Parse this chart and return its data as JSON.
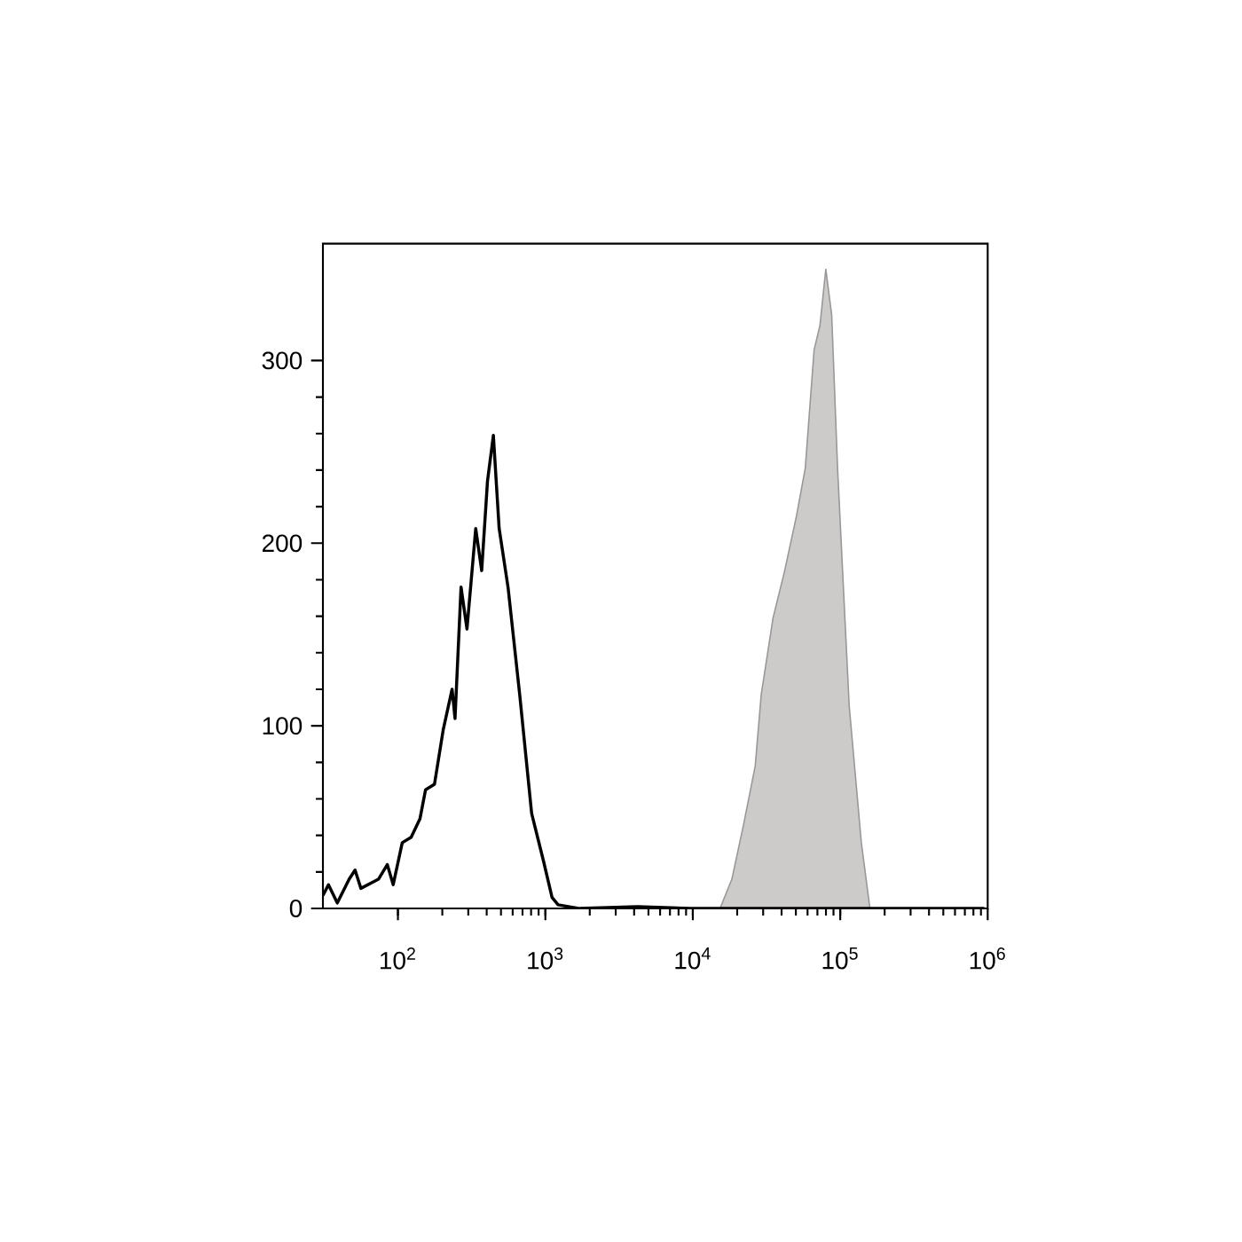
{
  "chart_data": {
    "type": "line",
    "log": "x",
    "xlim": [
      31,
      1000000
    ],
    "ylim": [
      0,
      364
    ],
    "xticks": [
      {
        "value": 100,
        "label": "10$^{2}$"
      },
      {
        "value": 1000,
        "label": "10$^{3}$"
      },
      {
        "value": 10000,
        "label": "10$^{4}$"
      },
      {
        "value": 100000,
        "label": "10$^{5}$"
      },
      {
        "value": 1000000,
        "label": "10$^{6}$"
      }
    ],
    "yticks": [
      0,
      100,
      200,
      300
    ],
    "series": [
      {
        "type": "area",
        "color": "#cdcaca",
        "x": [
          15300,
          18400,
          22100,
          26500,
          29100,
          35000,
          42000,
          50500,
          57900,
          66500,
          72800,
          79800,
          87500,
          95900,
          115000,
          139000,
          159000
        ],
        "values": [
          0,
          16,
          46,
          78,
          117,
          159,
          185,
          215,
          241,
          306,
          319,
          350,
          325,
          241,
          111,
          36,
          0
        ]
      },
      {
        "color": "#000000",
        "x": [
          31,
          33.8,
          38.8,
          46.7,
          51.2,
          56.1,
          73.8,
          84.7,
          92.9,
          107,
          123,
          141,
          154,
          177,
          203,
          233,
          244,
          268,
          294,
          337,
          370,
          405,
          444,
          486,
          558,
          670,
          807,
          971,
          1110,
          1220,
          1680,
          4220,
          9660,
          950000
        ],
        "values": [
          7,
          13,
          3,
          16,
          21,
          11,
          16,
          24,
          13,
          36,
          39,
          49,
          65,
          68,
          98,
          120,
          104,
          176,
          153,
          208,
          185,
          234,
          259,
          208,
          176,
          117,
          52,
          26,
          6,
          2,
          0,
          1,
          0,
          0
        ]
      }
    ]
  }
}
